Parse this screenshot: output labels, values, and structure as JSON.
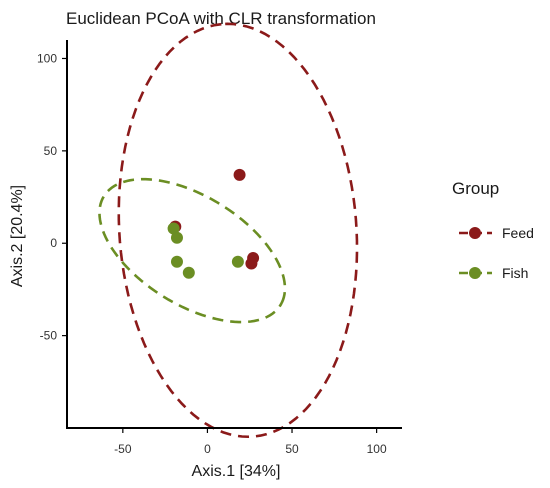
{
  "chart_data": {
    "type": "scatter",
    "title": "Euclidean PCoA with CLR transformation",
    "xlabel": "Axis.1   [34%]",
    "ylabel": "Axis.2   [20.4%]",
    "xlim": [
      -83,
      115
    ],
    "ylim": [
      -100,
      110
    ],
    "x_ticks": [
      -50,
      0,
      50,
      100
    ],
    "y_ticks": [
      -50,
      0,
      50,
      100
    ],
    "x_tick_labels": [
      "-50",
      "0",
      "50",
      "100"
    ],
    "y_tick_labels": [
      "-50",
      "0",
      "50",
      "100"
    ],
    "grid": false,
    "legend": {
      "title": "Group",
      "position": "right"
    },
    "series": [
      {
        "name": "Feed",
        "color": "#8b1a1a",
        "points": [
          {
            "x": 19,
            "y": 37
          },
          {
            "x": -19,
            "y": 9
          },
          {
            "x": 27,
            "y": -8
          },
          {
            "x": 26,
            "y": -11
          }
        ],
        "ellipse": {
          "cx": 18,
          "cy": 7,
          "rx": 112,
          "ry": 70,
          "angle_deg": 95
        }
      },
      {
        "name": "Fish",
        "color": "#6b8e23",
        "points": [
          {
            "x": -20,
            "y": 8
          },
          {
            "x": -18,
            "y": 3
          },
          {
            "x": -18,
            "y": -10
          },
          {
            "x": -11,
            "y": -16
          },
          {
            "x": 18,
            "y": -10
          }
        ],
        "ellipse": {
          "cx": -9,
          "cy": -4,
          "rx": 60,
          "ry": 30,
          "angle_deg": -28
        }
      }
    ]
  }
}
